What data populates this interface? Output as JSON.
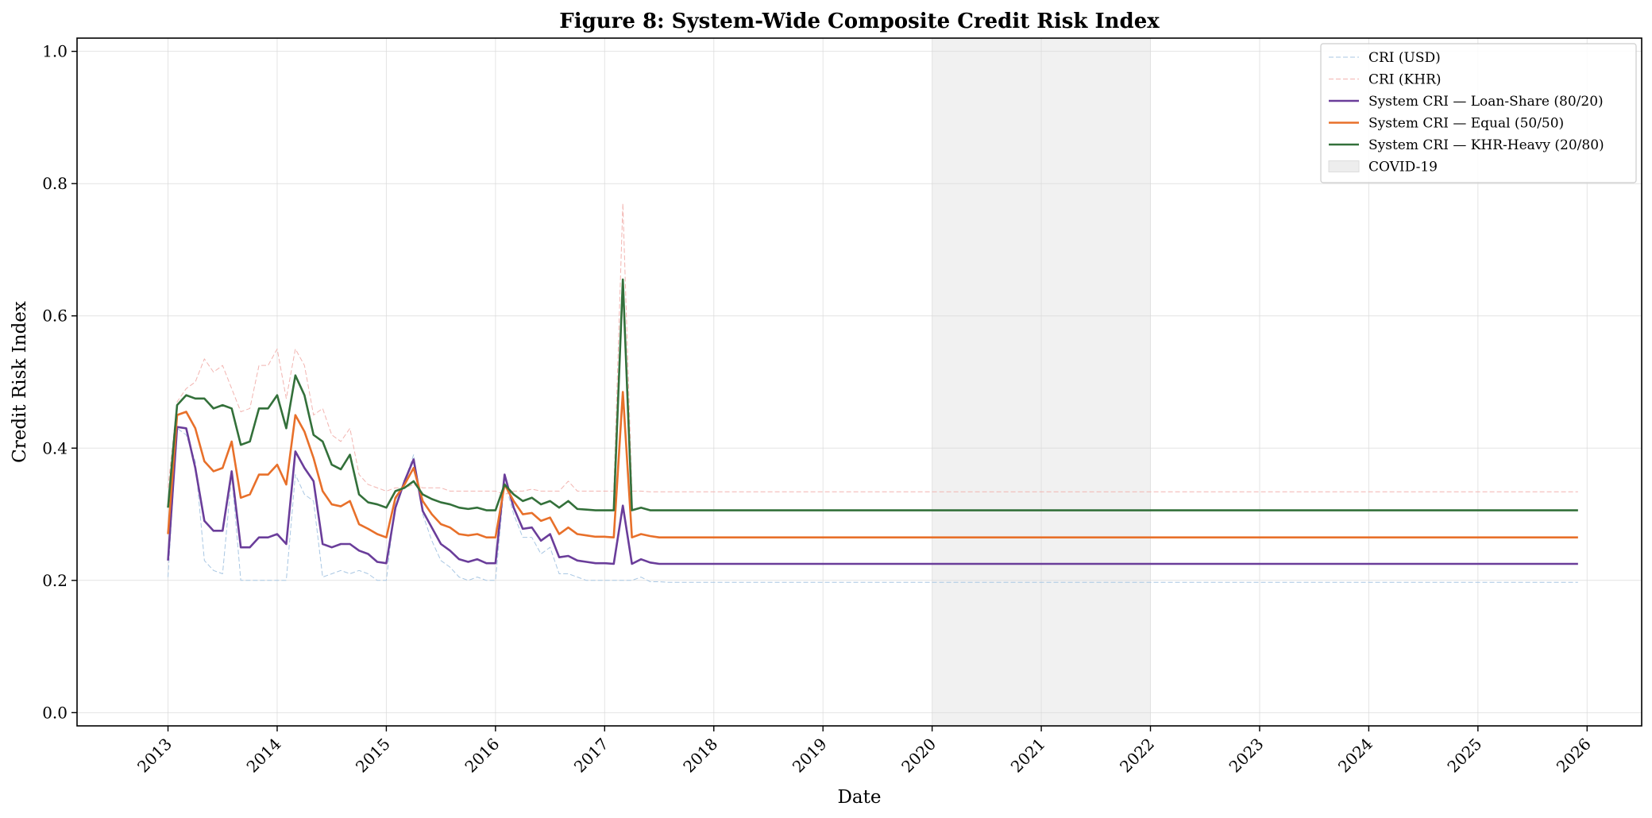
{
  "chart_data": {
    "type": "line",
    "title": "Figure 8: System-Wide Composite Credit Risk Index",
    "xlabel": "Date",
    "ylabel": "Credit Risk Index",
    "xlim": [
      "2012-03",
      "2026-07"
    ],
    "ylim": [
      -0.02,
      1.02
    ],
    "x_ticks": [
      "2013",
      "2014",
      "2015",
      "2016",
      "2017",
      "2018",
      "2019",
      "2020",
      "2021",
      "2022",
      "2023",
      "2024",
      "2025",
      "2026"
    ],
    "y_ticks": [
      "0.0",
      "0.2",
      "0.4",
      "0.6",
      "0.8",
      "1.0"
    ],
    "grid": true,
    "legend_position": "top-right",
    "x_start": "2013-01",
    "x_end": "2025-12",
    "frequency": "monthly",
    "shaded_regions": [
      {
        "name": "COVID-19",
        "start": "2020-01",
        "end": "2022-01",
        "color": "#e6e6e6"
      }
    ],
    "series": [
      {
        "name": "CRI (USD)",
        "color": "#a9c7e3",
        "style": "dashed",
        "width": 1,
        "values": [
          0.205,
          0.43,
          0.42,
          0.38,
          0.23,
          0.215,
          0.21,
          0.36,
          0.2,
          0.2,
          0.2,
          0.2,
          0.2,
          0.2,
          0.36,
          0.33,
          0.32,
          0.205,
          0.21,
          0.215,
          0.21,
          0.215,
          0.21,
          0.2,
          0.2,
          0.32,
          0.35,
          0.39,
          0.3,
          0.26,
          0.23,
          0.22,
          0.205,
          0.2,
          0.205,
          0.2,
          0.2,
          0.35,
          0.3,
          0.265,
          0.265,
          0.24,
          0.25,
          0.21,
          0.21,
          0.205,
          0.2,
          0.2,
          0.2,
          0.2,
          0.2,
          0.2,
          0.205,
          0.198,
          0.198
        ]
      },
      {
        "name": "CRI (KHR)",
        "color": "#f2b4b0",
        "style": "dashed",
        "width": 1,
        "values": [
          0.34,
          0.47,
          0.49,
          0.5,
          0.535,
          0.515,
          0.525,
          0.49,
          0.455,
          0.46,
          0.525,
          0.525,
          0.55,
          0.475,
          0.55,
          0.525,
          0.45,
          0.46,
          0.42,
          0.41,
          0.43,
          0.36,
          0.345,
          0.34,
          0.335,
          0.34,
          0.34,
          0.345,
          0.34,
          0.34,
          0.34,
          0.335,
          0.335,
          0.335,
          0.335,
          0.335,
          0.335,
          0.33,
          0.335,
          0.335,
          0.338,
          0.335,
          0.335,
          0.335,
          0.35,
          0.335,
          0.335,
          0.335,
          0.335,
          0.335,
          0.77,
          0.335,
          0.335,
          0.334,
          0.334
        ]
      },
      {
        "name": "System CRI — Loan-Share (80/20)",
        "color": "#6a3d9a",
        "style": "solid",
        "width": 2.6,
        "values": [
          0.23,
          0.432,
          0.43,
          0.37,
          0.29,
          0.275,
          0.275,
          0.365,
          0.25,
          0.25,
          0.265,
          0.265,
          0.27,
          0.255,
          0.395,
          0.37,
          0.35,
          0.255,
          0.25,
          0.255,
          0.255,
          0.245,
          0.24,
          0.228,
          0.226,
          0.31,
          0.35,
          0.383,
          0.305,
          0.28,
          0.255,
          0.245,
          0.232,
          0.228,
          0.232,
          0.226,
          0.226,
          0.36,
          0.31,
          0.278,
          0.28,
          0.26,
          0.27,
          0.235,
          0.237,
          0.23,
          0.228,
          0.226,
          0.226,
          0.225,
          0.313,
          0.225,
          0.232,
          0.227,
          0.225
        ]
      },
      {
        "name": "System CRI — Equal (50/50)",
        "color": "#e8702a",
        "style": "solid",
        "width": 2.6,
        "values": [
          0.27,
          0.45,
          0.455,
          0.43,
          0.38,
          0.365,
          0.37,
          0.41,
          0.325,
          0.33,
          0.36,
          0.36,
          0.375,
          0.345,
          0.45,
          0.425,
          0.385,
          0.335,
          0.315,
          0.312,
          0.32,
          0.285,
          0.278,
          0.27,
          0.265,
          0.325,
          0.345,
          0.37,
          0.32,
          0.3,
          0.285,
          0.28,
          0.27,
          0.268,
          0.27,
          0.265,
          0.265,
          0.345,
          0.32,
          0.3,
          0.302,
          0.29,
          0.295,
          0.27,
          0.28,
          0.27,
          0.268,
          0.266,
          0.266,
          0.265,
          0.485,
          0.265,
          0.27,
          0.267,
          0.265
        ]
      },
      {
        "name": "System CRI — KHR-Heavy (20/80)",
        "color": "#33703a",
        "style": "solid",
        "width": 2.6,
        "values": [
          0.31,
          0.465,
          0.48,
          0.475,
          0.475,
          0.46,
          0.465,
          0.46,
          0.405,
          0.41,
          0.46,
          0.46,
          0.48,
          0.43,
          0.51,
          0.48,
          0.42,
          0.41,
          0.375,
          0.368,
          0.39,
          0.33,
          0.318,
          0.315,
          0.31,
          0.335,
          0.34,
          0.35,
          0.33,
          0.323,
          0.318,
          0.315,
          0.31,
          0.308,
          0.31,
          0.306,
          0.306,
          0.345,
          0.33,
          0.32,
          0.325,
          0.315,
          0.32,
          0.31,
          0.32,
          0.308,
          0.307,
          0.306,
          0.306,
          0.306,
          0.655,
          0.306,
          0.31,
          0.306,
          0.306
        ]
      }
    ],
    "tail_values": {
      "CRI (USD)": 0.197,
      "CRI (KHR)": 0.334,
      "System CRI — Loan-Share (80/20)": 0.225,
      "System CRI — Equal (50/50)": 0.265,
      "System CRI — KHR-Heavy (20/80)": 0.306
    }
  }
}
